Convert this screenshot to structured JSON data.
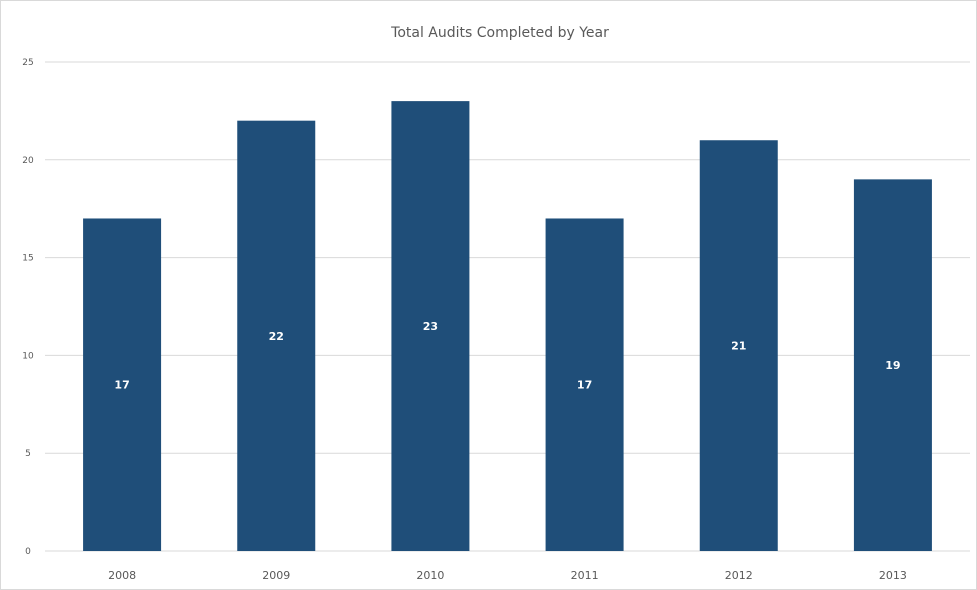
{
  "chart_data": {
    "type": "bar",
    "title": "Total Audits Completed  by Year",
    "categories": [
      "2008",
      "2009",
      "2010",
      "2011",
      "2012",
      "2013"
    ],
    "values": [
      17,
      22,
      23,
      17,
      21,
      19
    ],
    "ylim": [
      0,
      25
    ],
    "yticks": [
      0,
      5,
      10,
      15,
      20,
      25
    ],
    "xlabel": "",
    "ylabel": "",
    "grid": true,
    "legend": "none",
    "data_labels": true,
    "bar_color": "#1f4e79",
    "label_color": "#ffffff",
    "grid_color": "#d9d9d9"
  }
}
